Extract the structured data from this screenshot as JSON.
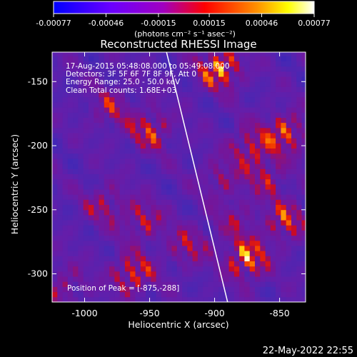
{
  "chart_data": {
    "type": "heatmap",
    "title": "Reconstructed RHESSI Image",
    "xlabel": "Heliocentric X (arcsec)",
    "ylabel": "Heliocentric Y (arcsec)",
    "xlim": [
      -1025,
      -830
    ],
    "ylim": [
      -322,
      -127
    ],
    "xticks": [
      -1000,
      -950,
      -900,
      -850
    ],
    "yticks": [
      -150,
      -200,
      -250,
      -300
    ],
    "xtick_labels": [
      "-1000",
      "-950",
      "-900",
      "-850"
    ],
    "ytick_labels": [
      "-150",
      "-200",
      "-250",
      "-300"
    ],
    "colorbar": {
      "ticks": [
        -0.00077,
        -0.00046,
        -0.00015,
        0.00015,
        0.00046,
        0.00077
      ],
      "tick_labels": [
        "-0.00077",
        "-0.00046",
        "-0.00015",
        "0.00015",
        "0.00046",
        "0.00077"
      ],
      "units": "(photons cm⁻² s⁻¹ asec⁻²)",
      "colors": [
        "#0000ff",
        "#8000ff",
        "#ff0000",
        "#ff8000",
        "#ffff00",
        "#ffffff"
      ]
    },
    "info": [
      "17-Aug-2015 05:48:08.000 to 05:49:08.000",
      "Detectors: 3F 5F 6F 7F 8F 9F, Att 0",
      "Energy Range: 25.0 - 50.0 keV",
      "Clean    Total counts: 1.68E+03"
    ],
    "peak_label": "Position of Peak = [-875,-288]",
    "peak": {
      "x": -875,
      "y": -288,
      "value": 0.00077
    },
    "limb": [
      {
        "x": -937,
        "y": -127
      },
      {
        "x": -890,
        "y": -322
      }
    ],
    "bright_sources": [
      {
        "x": -896,
        "y": -140,
        "value": 0.00077
      },
      {
        "x": -950,
        "y": -188,
        "value": 0.00055
      },
      {
        "x": -980,
        "y": -170,
        "value": 0.0004
      },
      {
        "x": -845,
        "y": -190,
        "value": 0.0006
      },
      {
        "x": -872,
        "y": -200,
        "value": 0.0005
      },
      {
        "x": -895,
        "y": -225,
        "value": 0.00035
      },
      {
        "x": -985,
        "y": -246,
        "value": 0.0004
      },
      {
        "x": -955,
        "y": -258,
        "value": 0.00045
      },
      {
        "x": -920,
        "y": -278,
        "value": 0.00042
      },
      {
        "x": -885,
        "y": -258,
        "value": 0.0003
      },
      {
        "x": -1015,
        "y": -308,
        "value": 0.00035
      },
      {
        "x": -963,
        "y": -300,
        "value": 0.0006
      },
      {
        "x": -875,
        "y": -288,
        "value": 0.00077
      },
      {
        "x": -845,
        "y": -258,
        "value": 0.00055
      },
      {
        "x": -860,
        "y": -225,
        "value": 0.0004
      }
    ]
  },
  "footer": {
    "timestamp": "22-May-2022 22:55"
  }
}
